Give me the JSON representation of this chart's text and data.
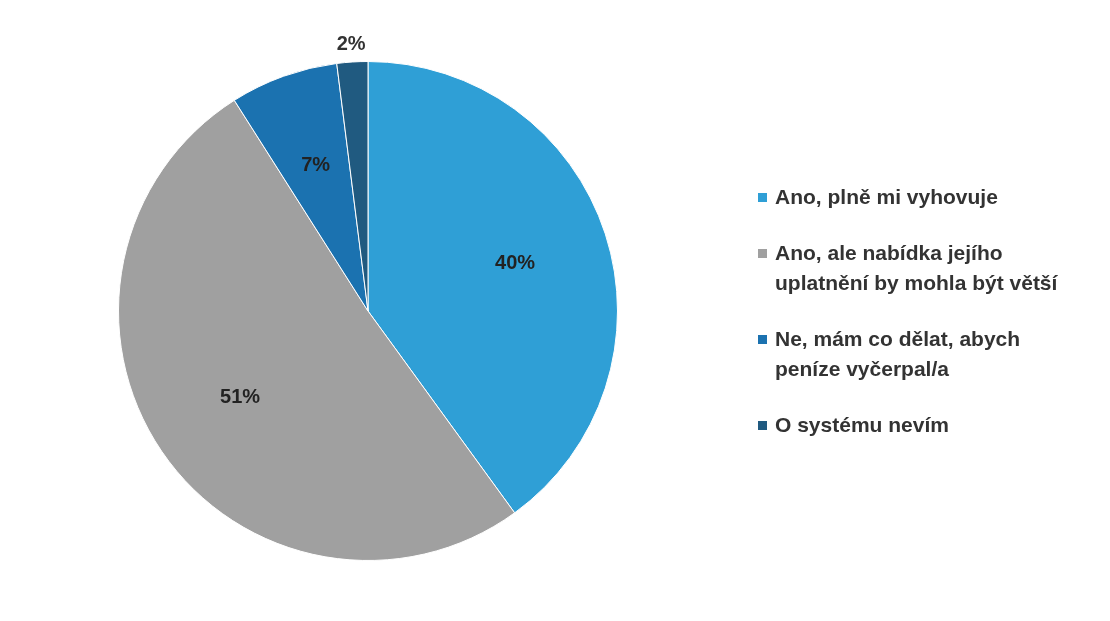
{
  "chart_data": {
    "type": "pie",
    "categories": [
      "Ano, plně mi vyhovuje",
      "Ano, ale nabídka jejího uplatnění by mohla být větší",
      "Ne, mám co dělat, abych peníze vyčerpal/a",
      "O systému nevím"
    ],
    "values": [
      40,
      51,
      7,
      2
    ],
    "colors": [
      "#2f9fd6",
      "#a0a0a0",
      "#1b72b0",
      "#205a80"
    ],
    "value_labels": [
      "40%",
      "51%",
      "7%",
      "2%"
    ],
    "legend": "right"
  }
}
